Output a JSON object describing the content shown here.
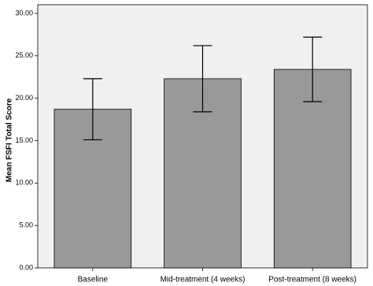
{
  "chart_data": {
    "type": "bar",
    "y_label": "Mean FSFI Total Score",
    "categories": [
      "Baseline",
      "Mid-treatment (4 weeks)",
      "Post-treatment (8 weeks)"
    ],
    "values": [
      18.7,
      22.3,
      23.4
    ],
    "errors": [
      3.6,
      3.9,
      3.8
    ],
    "color": "#999999",
    "ylim": [
      0,
      30
    ],
    "yticks": [
      {
        "value": 0,
        "label": "0.00"
      },
      {
        "value": 5,
        "label": "5.00"
      },
      {
        "value": 10,
        "label": "10.00"
      },
      {
        "value": 15,
        "label": "15.00"
      },
      {
        "value": 20,
        "label": "20.00"
      },
      {
        "value": 25,
        "label": "25.00"
      },
      {
        "value": 30,
        "label": "30.00"
      }
    ]
  }
}
